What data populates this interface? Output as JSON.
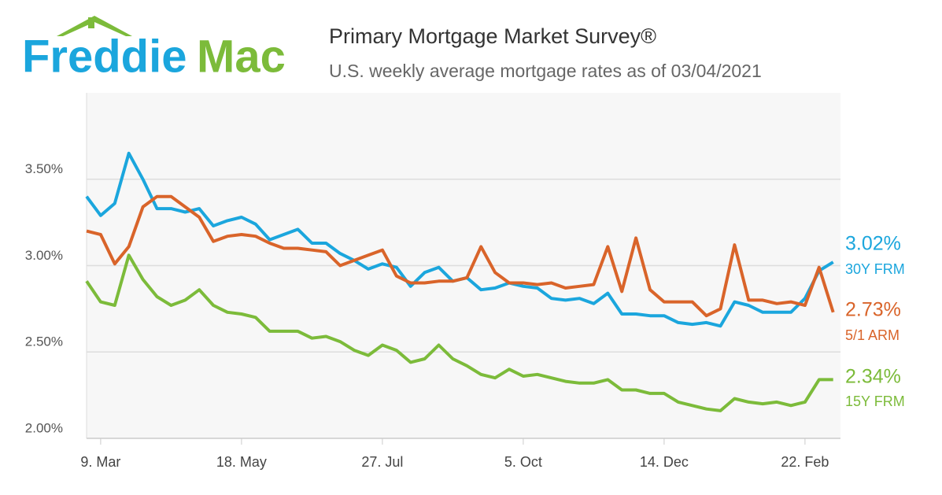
{
  "chart_data": {
    "type": "line",
    "logo": [
      "Freddie",
      "Mac"
    ],
    "title": "Primary Mortgage Market Survey®",
    "subtitle": "U.S. weekly average mortgage rates as of 03/04/2021",
    "categories": [
      null,
      "9. Mar",
      null,
      null,
      null,
      null,
      null,
      null,
      null,
      null,
      null,
      "18. May",
      null,
      null,
      null,
      null,
      null,
      null,
      null,
      null,
      null,
      "27. Jul",
      null,
      null,
      null,
      null,
      null,
      null,
      null,
      null,
      null,
      "5. Oct",
      null,
      null,
      null,
      null,
      null,
      null,
      null,
      null,
      null,
      "14. Dec",
      null,
      null,
      null,
      null,
      null,
      null,
      null,
      null,
      null,
      "22. Feb",
      null,
      null
    ],
    "ylim": [
      2.0,
      4.0
    ],
    "yticks": [
      {
        "value": 2.0,
        "label": "2.00%"
      },
      {
        "value": 2.5,
        "label": "2.50%"
      },
      {
        "value": 3.0,
        "label": "3.00%"
      },
      {
        "value": 3.5,
        "label": "3.50%"
      }
    ],
    "grid": true,
    "series": [
      {
        "name": "30Y FRM",
        "color": "#1ba6dd",
        "values": [
          3.4,
          3.29,
          3.36,
          3.65,
          3.5,
          3.33,
          3.33,
          3.31,
          3.33,
          3.23,
          3.26,
          3.28,
          3.24,
          3.15,
          3.18,
          3.21,
          3.13,
          3.13,
          3.07,
          3.03,
          2.98,
          3.01,
          2.99,
          2.88,
          2.96,
          2.99,
          2.91,
          2.93,
          2.86,
          2.87,
          2.9,
          2.88,
          2.87,
          2.81,
          2.8,
          2.81,
          2.78,
          2.84,
          2.72,
          2.72,
          2.71,
          2.71,
          2.67,
          2.66,
          2.67,
          2.65,
          2.79,
          2.77,
          2.73,
          2.73,
          2.73,
          2.81,
          2.97,
          3.02
        ],
        "value_labels": [
          null,
          null,
          null,
          null,
          null,
          null,
          null,
          null,
          null,
          null,
          null,
          null,
          null,
          null,
          null,
          null,
          null,
          null,
          null,
          null,
          null,
          null,
          null,
          null,
          null,
          null,
          null,
          null,
          null,
          null,
          null,
          null,
          null,
          null,
          null,
          null,
          null,
          null,
          null,
          null,
          null,
          null,
          null,
          null,
          null,
          null,
          null,
          null,
          null,
          null,
          null,
          null,
          null,
          "3.02%"
        ]
      },
      {
        "name": "5/1 ARM",
        "color": "#d9642a",
        "values": [
          3.2,
          3.18,
          3.01,
          3.11,
          3.34,
          3.4,
          3.4,
          3.34,
          3.28,
          3.14,
          3.17,
          3.18,
          3.17,
          3.13,
          3.1,
          3.1,
          3.09,
          3.08,
          3.0,
          3.03,
          3.06,
          3.09,
          2.94,
          2.9,
          2.9,
          2.91,
          2.91,
          2.93,
          3.11,
          2.96,
          2.9,
          2.9,
          2.89,
          2.9,
          2.87,
          2.88,
          2.89,
          3.11,
          2.85,
          3.16,
          2.86,
          2.79,
          2.79,
          2.79,
          2.71,
          2.75,
          3.12,
          2.8,
          2.8,
          2.78,
          2.79,
          2.77,
          2.99,
          2.73
        ],
        "value_labels": [
          null,
          null,
          null,
          null,
          null,
          null,
          null,
          null,
          null,
          null,
          null,
          null,
          null,
          null,
          null,
          null,
          null,
          null,
          null,
          null,
          null,
          null,
          null,
          null,
          null,
          null,
          null,
          null,
          null,
          null,
          null,
          null,
          null,
          null,
          null,
          null,
          null,
          null,
          null,
          null,
          null,
          null,
          null,
          null,
          null,
          null,
          null,
          null,
          null,
          null,
          null,
          null,
          null,
          "2.73%"
        ]
      },
      {
        "name": "15Y FRM",
        "color": "#7cbb3a",
        "values": [
          2.91,
          2.79,
          2.77,
          3.06,
          2.92,
          2.82,
          2.77,
          2.8,
          2.86,
          2.77,
          2.73,
          2.72,
          2.7,
          2.62,
          2.62,
          2.62,
          2.58,
          2.59,
          2.56,
          2.51,
          2.48,
          2.54,
          2.51,
          2.44,
          2.46,
          2.54,
          2.46,
          2.42,
          2.37,
          2.35,
          2.4,
          2.36,
          2.37,
          2.35,
          2.33,
          2.32,
          2.32,
          2.34,
          2.28,
          2.28,
          2.26,
          2.26,
          2.21,
          2.19,
          2.17,
          2.16,
          2.23,
          2.21,
          2.2,
          2.21,
          2.19,
          2.21,
          2.34,
          2.34
        ],
        "value_labels": [
          null,
          null,
          null,
          null,
          null,
          null,
          null,
          null,
          null,
          null,
          null,
          null,
          null,
          null,
          null,
          null,
          null,
          null,
          null,
          null,
          null,
          null,
          null,
          null,
          null,
          null,
          null,
          null,
          null,
          null,
          null,
          null,
          null,
          null,
          null,
          null,
          null,
          null,
          null,
          null,
          null,
          null,
          null,
          null,
          null,
          null,
          null,
          null,
          null,
          null,
          null,
          null,
          null,
          "2.34%"
        ]
      }
    ]
  }
}
